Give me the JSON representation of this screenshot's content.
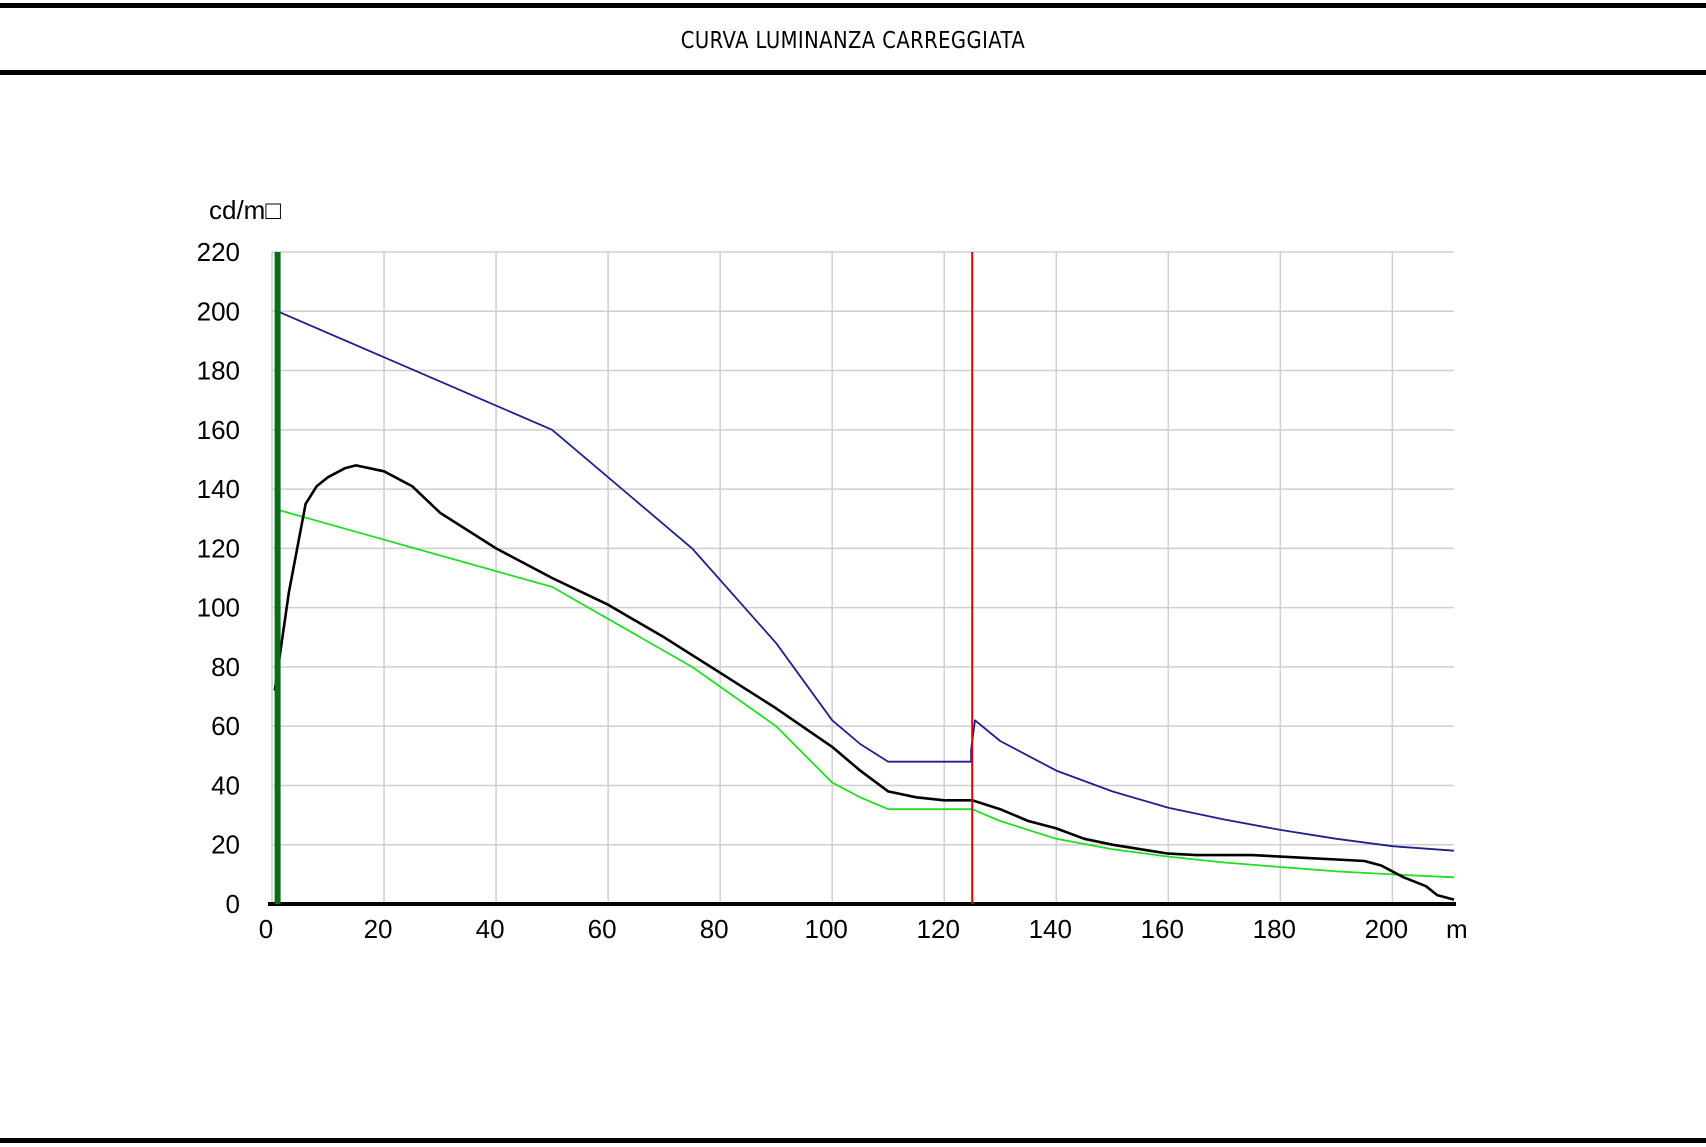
{
  "page": {
    "title": "CURVA  LUMINANZA  CARREGGIATA"
  },
  "chart_data": {
    "type": "line",
    "title": "CURVA  LUMINANZA  CARREGGIATA",
    "ylabel": "cd/m□",
    "xlabel": "m",
    "xlim": [
      0,
      211
    ],
    "ylim": [
      0,
      220
    ],
    "x_ticks": [
      0,
      20,
      40,
      60,
      80,
      100,
      120,
      140,
      160,
      180,
      200
    ],
    "y_ticks": [
      0,
      20,
      40,
      60,
      80,
      100,
      120,
      140,
      160,
      180,
      200,
      220
    ],
    "grid": true,
    "vertical_markers": [
      {
        "x": 1,
        "color": "#0a6b1a"
      },
      {
        "x": 125,
        "color": "#dd0000"
      }
    ],
    "series": [
      {
        "color": "#1f1f8f",
        "x": [
          1,
          50,
          75,
          90,
          100,
          105,
          110,
          120,
          124.8,
          124.8,
          125.5,
          130,
          140,
          150,
          160,
          170,
          180,
          190,
          200,
          211
        ],
        "y": [
          200,
          160,
          120,
          88,
          62,
          54,
          48,
          48,
          48,
          52,
          62,
          55,
          45,
          38,
          32.5,
          28.5,
          25,
          22,
          19.5,
          18
        ]
      },
      {
        "color": "#22dd22",
        "x": [
          1,
          50,
          75,
          90,
          100,
          105,
          110,
          120,
          125,
          130,
          140,
          150,
          160,
          170,
          180,
          190,
          200,
          211
        ],
        "y": [
          133,
          107,
          80,
          60,
          41,
          36,
          32,
          32,
          32,
          28,
          22,
          18.5,
          16,
          14,
          12.5,
          11,
          10,
          9
        ]
      },
      {
        "color": "#000000",
        "x": [
          0.5,
          3,
          6,
          8,
          10,
          13,
          15,
          20,
          25,
          30,
          40,
          50,
          60,
          70,
          80,
          90,
          100,
          105,
          110,
          115,
          120,
          125,
          130,
          135,
          140,
          145,
          150,
          155,
          160,
          165,
          170,
          175,
          180,
          185,
          190,
          195,
          198,
          202,
          206,
          208,
          211
        ],
        "y": [
          72,
          105,
          135,
          141,
          144,
          147,
          148,
          146,
          141,
          132,
          120,
          110,
          101,
          90,
          78,
          66,
          53,
          45,
          38,
          36,
          35,
          35,
          32,
          28,
          25.5,
          22,
          20,
          18.5,
          17,
          16.5,
          16.5,
          16.5,
          16,
          15.5,
          15,
          14.5,
          13,
          9,
          6,
          3,
          1.5
        ]
      }
    ]
  }
}
